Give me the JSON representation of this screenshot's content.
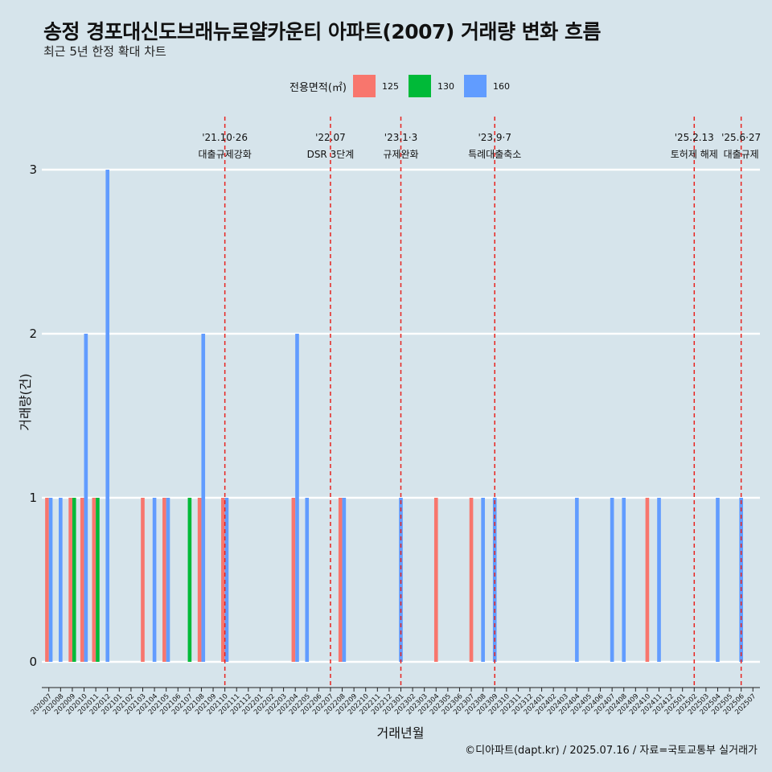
{
  "title": "송정 경포대신도브래뉴로얄카운티 아파트(2007) 거래량 변화 흐름",
  "subtitle": "최근 5년 한정 확대 차트",
  "caption": "©디아파트(dapt.kr) / 2025.07.16 / 자료=국토교통부 실거래가",
  "legend": {
    "title": "전용면적(㎡)",
    "items": [
      {
        "label": "125",
        "color": "#f8766d"
      },
      {
        "label": "130",
        "color": "#00ba38"
      },
      {
        "label": "160",
        "color": "#619cff"
      }
    ]
  },
  "chart_data": {
    "type": "bar",
    "xlabel": "거래년월",
    "ylabel": "거래량(건)",
    "ylim": [
      0,
      3
    ],
    "yticks": [
      0,
      1,
      2,
      3
    ],
    "categories": [
      "202007",
      "202008",
      "202009",
      "202010",
      "202011",
      "202012",
      "202101",
      "202102",
      "202103",
      "202104",
      "202105",
      "202106",
      "202107",
      "202108",
      "202109",
      "202110",
      "202111",
      "202112",
      "202201",
      "202202",
      "202203",
      "202204",
      "202205",
      "202206",
      "202207",
      "202208",
      "202209",
      "202210",
      "202211",
      "202212",
      "202301",
      "202302",
      "202303",
      "202304",
      "202305",
      "202306",
      "202307",
      "202308",
      "202309",
      "202310",
      "202311",
      "202312",
      "202401",
      "202402",
      "202403",
      "202404",
      "202405",
      "202406",
      "202407",
      "202408",
      "202409",
      "202410",
      "202411",
      "202412",
      "202501",
      "202502",
      "202503",
      "202504",
      "202505",
      "202506",
      "202507"
    ],
    "series": [
      {
        "name": "125",
        "color": "#f8766d",
        "values": [
          1,
          0,
          1,
          1,
          1,
          0,
          0,
          0,
          1,
          0,
          1,
          0,
          0,
          1,
          0,
          1,
          0,
          0,
          0,
          0,
          0,
          1,
          0,
          0,
          0,
          1,
          0,
          0,
          0,
          0,
          0,
          0,
          0,
          1,
          0,
          0,
          1,
          0,
          0,
          0,
          0,
          0,
          0,
          0,
          0,
          0,
          0,
          0,
          0,
          0,
          0,
          1,
          0,
          0,
          0,
          0,
          0,
          0,
          0,
          0,
          0
        ]
      },
      {
        "name": "130",
        "color": "#00ba38",
        "values": [
          0,
          0,
          1,
          0,
          1,
          0,
          0,
          0,
          0,
          0,
          0,
          0,
          1,
          0,
          0,
          0,
          0,
          0,
          0,
          0,
          0,
          0,
          0,
          0,
          0,
          0,
          0,
          0,
          0,
          0,
          0,
          0,
          0,
          0,
          0,
          0,
          0,
          0,
          0,
          0,
          0,
          0,
          0,
          0,
          0,
          0,
          0,
          0,
          0,
          0,
          0,
          0,
          0,
          0,
          0,
          0,
          0,
          0,
          0,
          0,
          0
        ]
      },
      {
        "name": "160",
        "color": "#619cff",
        "values": [
          1,
          1,
          0,
          2,
          0,
          3,
          0,
          0,
          0,
          1,
          1,
          0,
          0,
          2,
          0,
          1,
          0,
          0,
          0,
          0,
          0,
          2,
          1,
          0,
          0,
          1,
          0,
          0,
          0,
          0,
          1,
          0,
          0,
          0,
          0,
          0,
          0,
          1,
          1,
          0,
          0,
          0,
          0,
          0,
          0,
          1,
          0,
          0,
          1,
          1,
          0,
          0,
          1,
          0,
          0,
          0,
          0,
          1,
          0,
          1,
          0
        ]
      }
    ],
    "events": [
      {
        "category": "202110",
        "date": "'21.10·26",
        "label": "대출규제강화"
      },
      {
        "category": "202207",
        "date": "'22.07",
        "label": "DSR 3단계"
      },
      {
        "category": "202301",
        "date": "'23.1·3",
        "label": "규제완화"
      },
      {
        "category": "202309",
        "date": "'23.9·7",
        "label": "특례대출축소"
      },
      {
        "category": "202502",
        "date": "'25.2.13",
        "label": "토허제 해제"
      },
      {
        "category": "202506",
        "date": "'25.6·27",
        "label": "대출규제"
      }
    ]
  }
}
